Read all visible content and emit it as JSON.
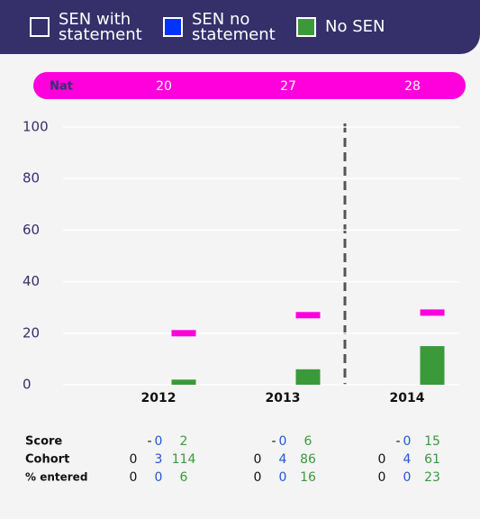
{
  "chart_data": {
    "type": "bar",
    "categories": [
      "2012",
      "2013",
      "2014"
    ],
    "series": [
      {
        "name": "SEN with statement",
        "color": "#ffffff",
        "text_color": "#111111",
        "values": [
          null,
          null,
          null
        ],
        "value_labels": [
          "-",
          "-",
          "-"
        ],
        "cohort": [
          0,
          0,
          0
        ],
        "entered": [
          0,
          0,
          0
        ]
      },
      {
        "name": "SEN no statement",
        "color": "#0033ff",
        "text_color": "#2255dd",
        "values": [
          0,
          0,
          0
        ],
        "cohort": [
          3,
          4,
          4
        ],
        "entered": [
          0,
          0,
          0
        ]
      },
      {
        "name": "No SEN",
        "color": "#3a9a3a",
        "text_color": "#3a9a3a",
        "values": [
          2,
          6,
          15
        ],
        "cohort": [
          114,
          86,
          61
        ],
        "entered": [
          6,
          16,
          23
        ]
      }
    ],
    "nat": {
      "label": "Nat",
      "values": [
        20,
        27,
        28
      ],
      "color": "#ff00dd"
    },
    "row_labels": [
      "Score",
      "Cohort",
      "% entered"
    ],
    "ylim": [
      0,
      100
    ],
    "yticks": [
      0,
      20,
      40,
      60,
      80,
      100
    ],
    "grid": true
  }
}
